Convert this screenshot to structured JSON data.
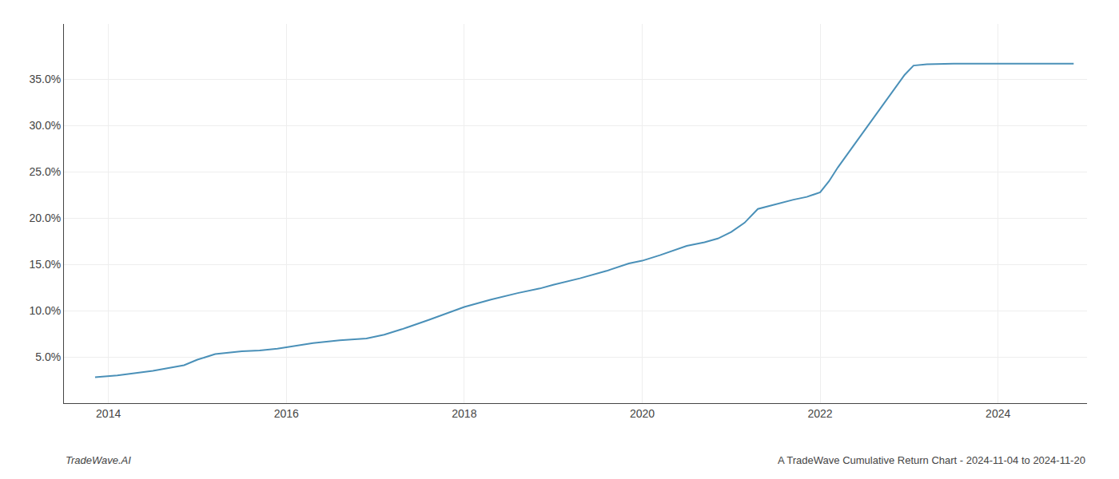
{
  "chart_data": {
    "type": "line",
    "title": "A TradeWave Cumulative Return Chart - 2024-11-04 to 2024-11-20",
    "annotations": [
      {
        "text": "TradeWave.AI"
      }
    ],
    "color": "#4a90b8",
    "grid": true,
    "x": [
      2013.85,
      2014.1,
      2014.5,
      2014.85,
      2015.0,
      2015.2,
      2015.5,
      2015.7,
      2015.9,
      2016.1,
      2016.3,
      2016.6,
      2016.9,
      2017.1,
      2017.3,
      2017.6,
      2017.85,
      2018.0,
      2018.3,
      2018.6,
      2018.85,
      2019.0,
      2019.3,
      2019.6,
      2019.85,
      2020.0,
      2020.2,
      2020.5,
      2020.7,
      2020.85,
      2021.0,
      2021.15,
      2021.3,
      2021.5,
      2021.7,
      2021.85,
      2022.0,
      2022.1,
      2022.2,
      2022.35,
      2022.5,
      2022.65,
      2022.8,
      2022.95,
      2023.05,
      2023.2,
      2023.5,
      2024.0,
      2024.5,
      2024.85
    ],
    "values": [
      2.8,
      3.0,
      3.5,
      4.1,
      4.7,
      5.3,
      5.6,
      5.7,
      5.9,
      6.2,
      6.5,
      6.8,
      7.0,
      7.4,
      8.0,
      9.0,
      9.9,
      10.4,
      11.2,
      11.9,
      12.4,
      12.8,
      13.5,
      14.3,
      15.1,
      15.4,
      16.0,
      17.0,
      17.4,
      17.8,
      18.5,
      19.5,
      21.0,
      21.5,
      22.0,
      22.3,
      22.8,
      24.0,
      25.5,
      27.5,
      29.5,
      31.5,
      33.5,
      35.5,
      36.5,
      36.65,
      36.7,
      36.7,
      36.7,
      36.7
    ],
    "xlim": [
      2013.5,
      2025.0
    ],
    "xticks": [
      2014,
      2016,
      2018,
      2020,
      2022,
      2024
    ],
    "ylim": [
      0,
      41
    ],
    "yticks": [
      {
        "value": 5.0,
        "label": "5.0%"
      },
      {
        "value": 10.0,
        "label": "10.0%"
      },
      {
        "value": 15.0,
        "label": "15.0%"
      },
      {
        "value": 20.0,
        "label": "20.0%"
      },
      {
        "value": 25.0,
        "label": "25.0%"
      },
      {
        "value": 30.0,
        "label": "30.0%"
      },
      {
        "value": 35.0,
        "label": "35.0%"
      }
    ]
  }
}
